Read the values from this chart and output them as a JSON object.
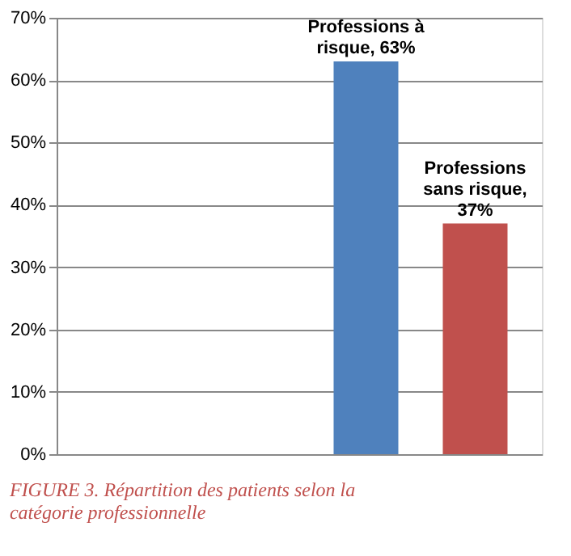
{
  "chart_data": {
    "type": "bar",
    "title": "FIGURE 3. Répartition des patients selon la catégorie professionnelle",
    "categories": [
      null,
      null
    ],
    "series": [
      {
        "color": "#4f81bd",
        "values": [
          null,
          63
        ],
        "value_labels": [
          null,
          "Professions à risque, 63%"
        ]
      },
      {
        "color": "#c0504d",
        "values": [
          null,
          37
        ],
        "value_labels": [
          null,
          "Professions sans risque, 37%"
        ]
      }
    ],
    "ylim": [
      0,
      70
    ],
    "yticks": [
      {
        "value": 0,
        "label": "0%"
      },
      {
        "value": 10,
        "label": "10%"
      },
      {
        "value": 20,
        "label": "20%"
      },
      {
        "value": 30,
        "label": "30%"
      },
      {
        "value": 40,
        "label": "40%"
      },
      {
        "value": 50,
        "label": "50%"
      },
      {
        "value": 60,
        "label": "60%"
      },
      {
        "value": 70,
        "label": "70%"
      }
    ],
    "grid": "y",
    "tick_labels": "y",
    "legend": false
  }
}
